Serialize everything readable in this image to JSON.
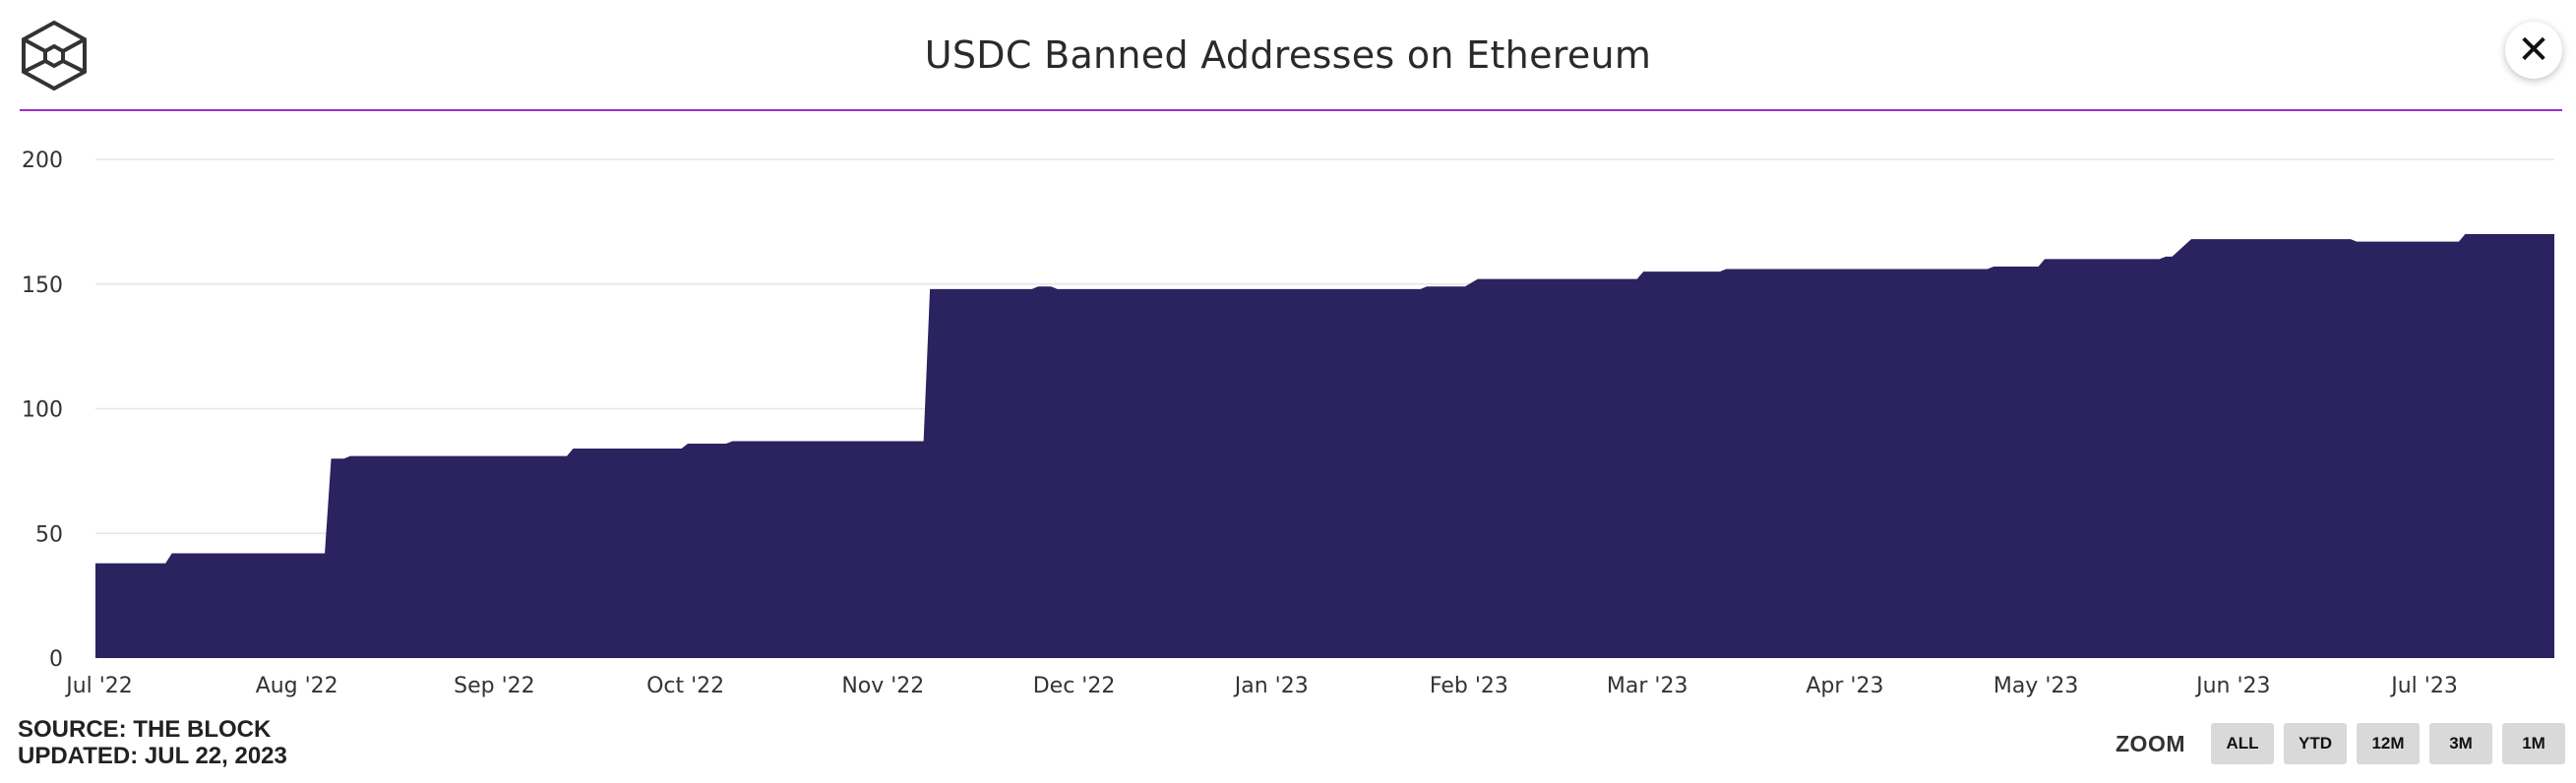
{
  "header": {
    "title": "USDC Banned Addresses on Ethereum",
    "logo_icon": "the-block-cube-logo-icon",
    "close_icon": "close-icon"
  },
  "colors": {
    "area_fill": "#2b2260",
    "accent_line": "#9b2fc9",
    "gridline": "#e6e6e6"
  },
  "footer": {
    "source": "SOURCE: THE BLOCK",
    "updated": "UPDATED: JUL 22, 2023"
  },
  "zoom": {
    "label": "ZOOM",
    "buttons": [
      "ALL",
      "YTD",
      "12M",
      "3M",
      "1M"
    ]
  },
  "chart_data": {
    "type": "area",
    "title": "USDC Banned Addresses on Ethereum",
    "xlabel": "",
    "ylabel": "",
    "ylim": [
      0,
      200
    ],
    "y_ticks": [
      0,
      50,
      100,
      150,
      200
    ],
    "x_range": [
      "2022-07-01",
      "2023-07-22"
    ],
    "x_ticks": [
      {
        "date": "2022-07-01",
        "label": "Jul '22"
      },
      {
        "date": "2022-08-01",
        "label": "Aug '22"
      },
      {
        "date": "2022-09-01",
        "label": "Sep '22"
      },
      {
        "date": "2022-10-01",
        "label": "Oct '22"
      },
      {
        "date": "2022-11-01",
        "label": "Nov '22"
      },
      {
        "date": "2022-12-01",
        "label": "Dec '22"
      },
      {
        "date": "2023-01-01",
        "label": "Jan '23"
      },
      {
        "date": "2023-02-01",
        "label": "Feb '23"
      },
      {
        "date": "2023-03-01",
        "label": "Mar '23"
      },
      {
        "date": "2023-04-01",
        "label": "Apr '23"
      },
      {
        "date": "2023-05-01",
        "label": "May '23"
      },
      {
        "date": "2023-06-01",
        "label": "Jun '23"
      },
      {
        "date": "2023-07-01",
        "label": "Jul '23"
      }
    ],
    "grid": true,
    "legend": "none",
    "series": [
      {
        "points": [
          [
            "2022-07-01",
            38
          ],
          [
            "2022-07-12",
            38
          ],
          [
            "2022-07-13",
            42
          ],
          [
            "2022-08-06",
            42
          ],
          [
            "2022-08-07",
            80
          ],
          [
            "2022-08-09",
            80
          ],
          [
            "2022-08-10",
            81
          ],
          [
            "2022-09-13",
            81
          ],
          [
            "2022-09-14",
            84
          ],
          [
            "2022-10-01",
            84
          ],
          [
            "2022-10-02",
            86
          ],
          [
            "2022-10-08",
            86
          ],
          [
            "2022-10-09",
            87
          ],
          [
            "2022-11-08",
            87
          ],
          [
            "2022-11-09",
            148
          ],
          [
            "2022-11-25",
            148
          ],
          [
            "2022-11-26",
            149
          ],
          [
            "2022-11-28",
            149
          ],
          [
            "2022-11-29",
            148
          ],
          [
            "2023-01-25",
            148
          ],
          [
            "2023-01-26",
            149
          ],
          [
            "2023-02-01",
            149
          ],
          [
            "2023-02-03",
            152
          ],
          [
            "2023-02-28",
            152
          ],
          [
            "2023-03-01",
            155
          ],
          [
            "2023-03-13",
            155
          ],
          [
            "2023-03-14",
            156
          ],
          [
            "2023-04-24",
            156
          ],
          [
            "2023-04-25",
            157
          ],
          [
            "2023-05-02",
            157
          ],
          [
            "2023-05-03",
            160
          ],
          [
            "2023-05-21",
            160
          ],
          [
            "2023-05-22",
            161
          ],
          [
            "2023-05-23",
            161
          ],
          [
            "2023-05-26",
            168
          ],
          [
            "2023-06-20",
            168
          ],
          [
            "2023-06-21",
            167
          ],
          [
            "2023-07-07",
            167
          ],
          [
            "2023-07-08",
            170
          ],
          [
            "2023-07-22",
            170
          ]
        ]
      }
    ]
  }
}
